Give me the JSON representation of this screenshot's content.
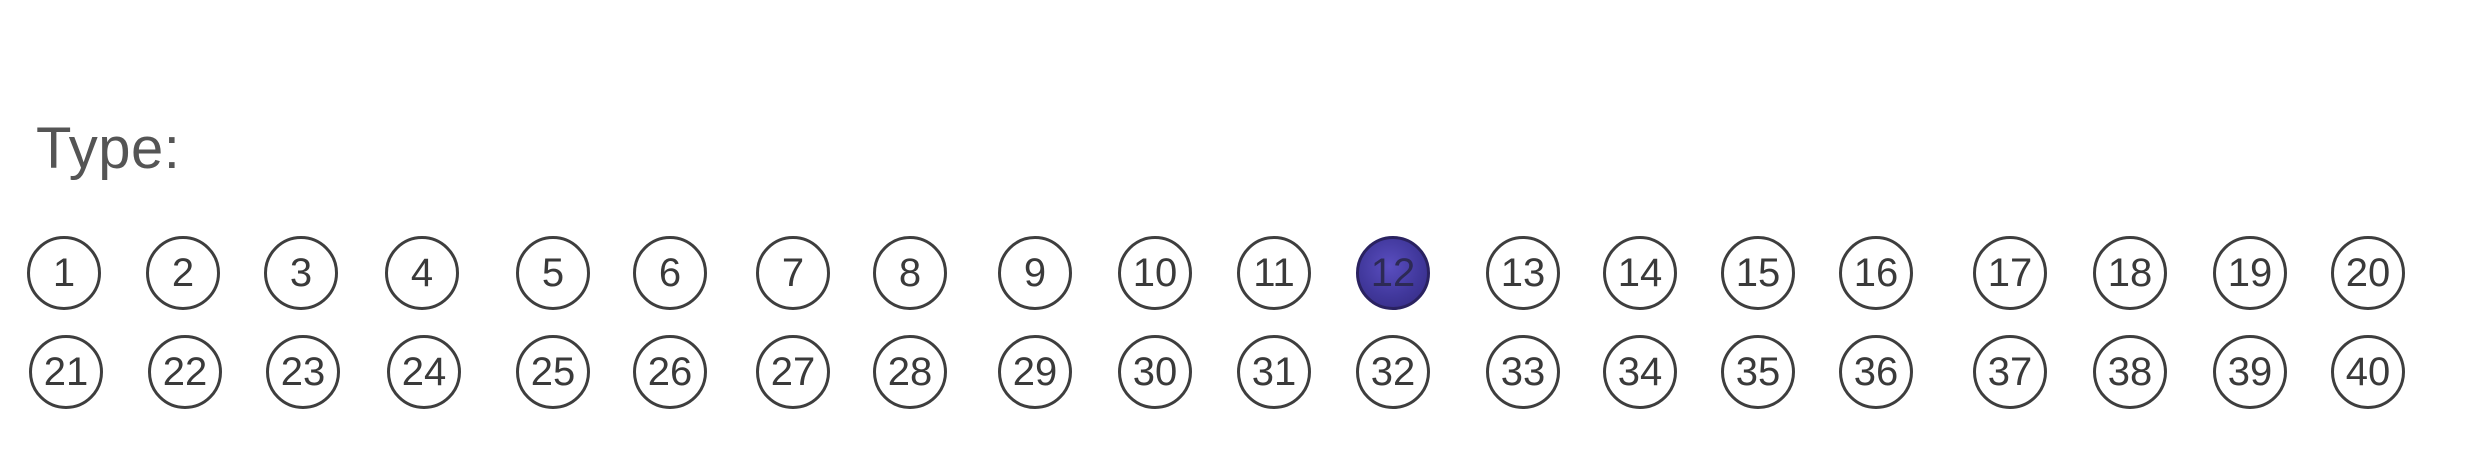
{
  "form": {
    "type_label": "Type:",
    "selected_value": 12,
    "fill_color": "#41389c",
    "rows": [
      {
        "options": [
          "1",
          "2",
          "3",
          "4",
          "5",
          "6",
          "7",
          "8",
          "9",
          "10",
          "11",
          "12",
          "13",
          "14",
          "15",
          "16",
          "17",
          "18",
          "19",
          "20"
        ]
      },
      {
        "options": [
          "21",
          "22",
          "23",
          "24",
          "25",
          "26",
          "27",
          "28",
          "29",
          "30",
          "31",
          "32",
          "33",
          "34",
          "35",
          "36",
          "37",
          "38",
          "39",
          "40"
        ]
      }
    ]
  }
}
